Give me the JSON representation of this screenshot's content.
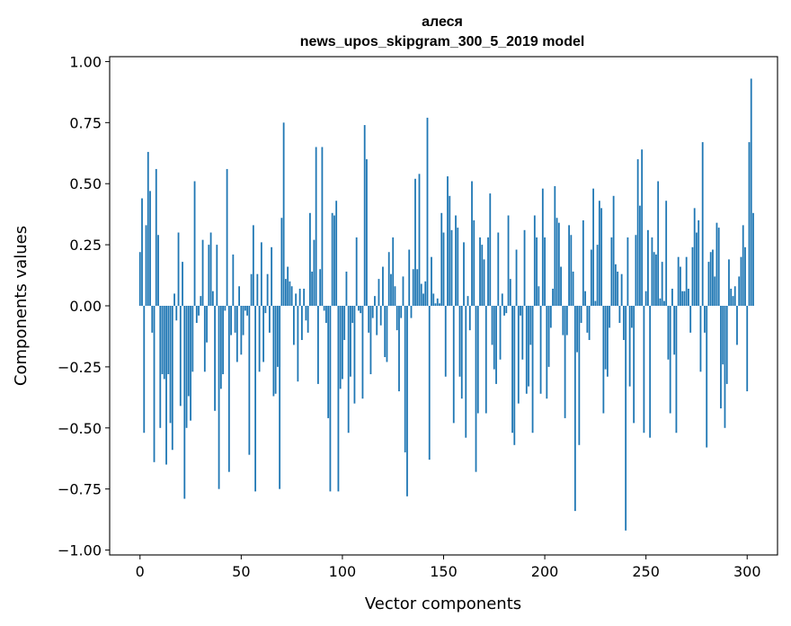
{
  "chart_data": {
    "type": "bar",
    "title_lines": [
      "алеся",
      "news_upos_skipgram_300_5_2019 model"
    ],
    "xlabel": "Vector components",
    "ylabel": "Components values",
    "xlim": [
      -15,
      315
    ],
    "ylim": [
      -1.02,
      1.02
    ],
    "xticks": [
      0,
      50,
      100,
      150,
      200,
      250,
      300
    ],
    "xtick_labels": [
      "0",
      "50",
      "100",
      "150",
      "200",
      "250",
      "300"
    ],
    "yticks": [
      -1.0,
      -0.75,
      -0.5,
      -0.25,
      0.0,
      0.25,
      0.5,
      0.75,
      1.0
    ],
    "ytick_labels": [
      "−1.00",
      "−0.75",
      "−0.50",
      "−0.25",
      "0.00",
      "0.25",
      "0.50",
      "0.75",
      "1.00"
    ],
    "bar_color": "#1f77b4",
    "bar_width": 0.8,
    "values": [
      0.22,
      0.44,
      -0.52,
      0.33,
      0.63,
      0.47,
      -0.11,
      -0.64,
      0.56,
      0.29,
      -0.5,
      -0.28,
      -0.3,
      -0.65,
      -0.28,
      -0.48,
      -0.59,
      0.05,
      -0.06,
      0.3,
      -0.41,
      0.18,
      -0.79,
      -0.5,
      -0.37,
      -0.47,
      -0.27,
      0.51,
      -0.07,
      -0.04,
      0.04,
      0.27,
      -0.27,
      -0.15,
      0.25,
      0.3,
      0.06,
      -0.43,
      0.25,
      -0.75,
      -0.34,
      -0.28,
      -0.02,
      0.56,
      -0.68,
      -0.12,
      0.21,
      -0.11,
      -0.23,
      0.08,
      -0.2,
      -0.12,
      -0.02,
      -0.04,
      -0.61,
      0.13,
      0.33,
      -0.76,
      0.13,
      -0.27,
      0.26,
      -0.23,
      -0.03,
      0.13,
      -0.11,
      0.24,
      -0.37,
      -0.36,
      -0.25,
      -0.75,
      0.36,
      0.75,
      0.11,
      0.16,
      0.1,
      0.08,
      -0.16,
      0.05,
      -0.31,
      0.07,
      -0.14,
      0.07,
      -0.06,
      -0.11,
      0.38,
      0.14,
      0.27,
      0.65,
      -0.32,
      0.15,
      0.65,
      -0.02,
      -0.07,
      -0.46,
      -0.76,
      0.38,
      0.37,
      0.43,
      -0.76,
      -0.34,
      -0.3,
      -0.14,
      0.14,
      -0.52,
      -0.29,
      -0.07,
      -0.4,
      0.28,
      -0.02,
      -0.03,
      -0.38,
      0.74,
      0.6,
      -0.11,
      -0.28,
      -0.05,
      0.04,
      -0.12,
      0.11,
      -0.08,
      0.16,
      -0.21,
      -0.23,
      0.22,
      0.13,
      0.28,
      0.08,
      -0.1,
      -0.35,
      -0.05,
      0.12,
      -0.6,
      -0.78,
      0.23,
      -0.05,
      0.15,
      0.52,
      0.15,
      0.54,
      0.09,
      0.05,
      0.1,
      0.77,
      -0.63,
      0.2,
      0.05,
      0.01,
      0.03,
      0.01,
      0.38,
      0.3,
      -0.29,
      0.53,
      0.45,
      0.31,
      -0.48,
      0.37,
      0.32,
      -0.29,
      -0.38,
      0.26,
      -0.54,
      0.04,
      -0.1,
      0.51,
      0.35,
      -0.68,
      -0.44,
      0.28,
      0.25,
      0.19,
      -0.44,
      0.28,
      0.46,
      -0.16,
      -0.26,
      -0.32,
      0.3,
      -0.22,
      0.05,
      -0.04,
      -0.03,
      0.37,
      0.11,
      -0.52,
      -0.57,
      0.23,
      -0.4,
      -0.04,
      -0.22,
      0.31,
      -0.36,
      -0.33,
      -0.16,
      -0.52,
      0.37,
      0.28,
      0.08,
      -0.36,
      0.48,
      0.28,
      -0.38,
      -0.25,
      -0.09,
      0.07,
      0.49,
      0.36,
      0.34,
      0.16,
      -0.12,
      -0.46,
      -0.12,
      0.33,
      0.29,
      0.14,
      -0.84,
      -0.19,
      -0.57,
      -0.07,
      0.35,
      0.06,
      -0.11,
      -0.14,
      0.23,
      0.48,
      0.02,
      0.25,
      0.43,
      0.4,
      -0.44,
      -0.26,
      -0.29,
      -0.09,
      0.28,
      0.45,
      0.17,
      0.14,
      -0.07,
      0.13,
      -0.14,
      -0.92,
      0.28,
      -0.33,
      -0.09,
      -0.48,
      0.29,
      0.6,
      0.41,
      0.64,
      -0.52,
      0.06,
      0.31,
      -0.54,
      0.28,
      0.22,
      0.21,
      0.51,
      0.03,
      0.18,
      0.02,
      0.43,
      -0.22,
      -0.44,
      0.07,
      -0.2,
      -0.52,
      0.2,
      0.16,
      0.06,
      0.06,
      0.2,
      0.07,
      -0.11,
      0.24,
      0.4,
      0.3,
      0.35,
      -0.27,
      0.67,
      -0.11,
      -0.58,
      0.18,
      0.22,
      0.23,
      0.12,
      0.34,
      0.32,
      -0.42,
      -0.24,
      -0.5,
      -0.32,
      0.19,
      0.07,
      0.04,
      0.08,
      -0.16,
      0.12,
      0.2,
      0.33,
      0.24,
      -0.35,
      0.67,
      0.93,
      0.38
    ]
  }
}
